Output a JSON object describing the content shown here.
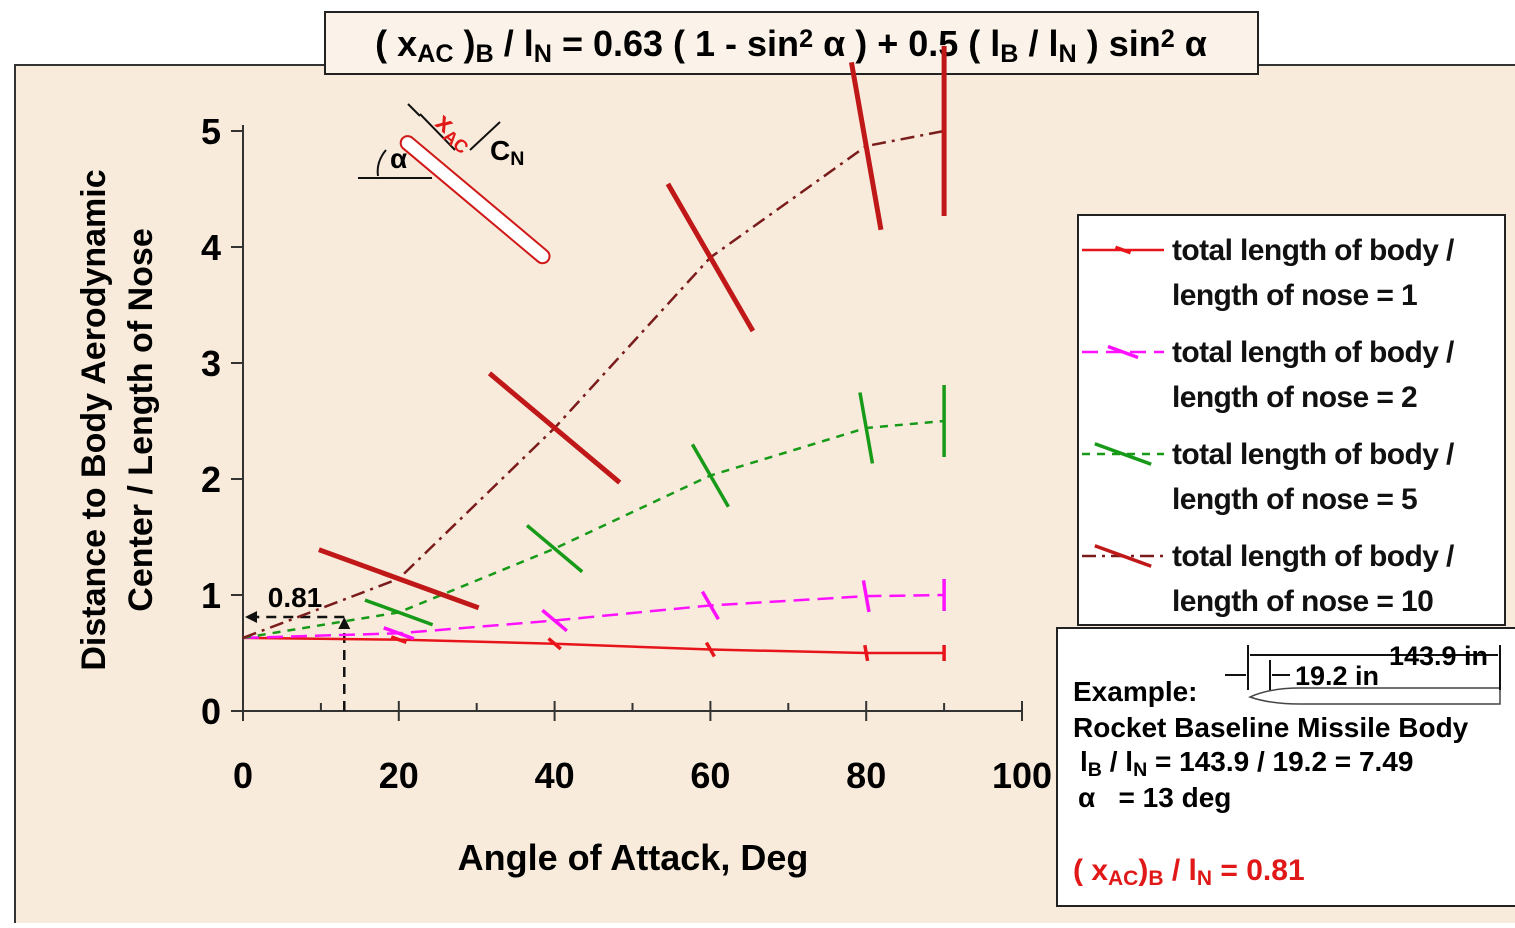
{
  "chart_data": {
    "type": "line",
    "title": [
      {
        "text": "( x"
      },
      {
        "sub": "AC"
      },
      {
        "text": " )"
      },
      {
        "sub": "B"
      },
      {
        "text": " / l"
      },
      {
        "sub": "N"
      },
      {
        "text": " = 0.63 ( 1 - sin"
      },
      {
        "sup": "2"
      },
      {
        "text": " α ) + 0.5 ( l"
      },
      {
        "sub": "B"
      },
      {
        "text": " / l"
      },
      {
        "sub": "N"
      },
      {
        "text": " ) sin"
      },
      {
        "sup": "2"
      },
      {
        "text": " α"
      }
    ],
    "xlabel": "Angle of Attack, Deg",
    "ylabel": [
      "Distance to Body Aerodynamic",
      "Center / Length of Nose"
    ],
    "x": [
      0,
      20,
      40,
      60,
      80,
      90
    ],
    "series": [
      {
        "name": "total length of body / length of nose = 1",
        "color": "#e8141b",
        "dash": "solid",
        "values": [
          0.63,
          0.615,
          0.58,
          0.53,
          0.5,
          0.5
        ]
      },
      {
        "name": "total length of body / length of nose = 2",
        "color": "#ff10ff",
        "dash": "dashed",
        "values": [
          0.63,
          0.67,
          0.78,
          0.91,
          0.99,
          1.0
        ]
      },
      {
        "name": "total length of body / length of nose = 5",
        "color": "#179a17",
        "dash": "dotted",
        "values": [
          0.63,
          0.85,
          1.4,
          2.03,
          2.44,
          2.5
        ]
      },
      {
        "name": "total length of body / length of nose = 10",
        "color": "#7a1c1c",
        "marker_color": "#c01818",
        "dash": "dashdot",
        "values": [
          0.63,
          1.14,
          2.44,
          3.91,
          4.87,
          5.0
        ]
      }
    ],
    "xlim": [
      0,
      100
    ],
    "xticks": [
      0,
      20,
      40,
      60,
      80,
      100
    ],
    "xminor": [
      10,
      30,
      50,
      70,
      90
    ],
    "ylim": [
      0,
      5
    ],
    "yticks": [
      0,
      1,
      2,
      3,
      4,
      5
    ],
    "grid": false,
    "legend": "right",
    "callout": {
      "x": 13,
      "y": 0.81
    },
    "sketch": {
      "alpha": "α",
      "xac": [
        {
          "text": "x"
        },
        {
          "sub": "AC"
        }
      ],
      "cn": [
        {
          "text": "C"
        },
        {
          "sub": "N"
        }
      ]
    },
    "example": {
      "heading": "Example:",
      "body": "Rocket Baseline Missile Body",
      "ratio": [
        {
          "text": "l"
        },
        {
          "sub": "B"
        },
        {
          "text": " / l"
        },
        {
          "sub": "N"
        },
        {
          "text": " = 143.9 / 19.2 = 7.49"
        }
      ],
      "alpha": "α   = 13 deg",
      "result": [
        {
          "text": "( x"
        },
        {
          "sub": "AC"
        },
        {
          "text": ")"
        },
        {
          "sub": "B"
        },
        {
          "text": " / l"
        },
        {
          "sub": "N"
        },
        {
          "text": " = 0.81"
        }
      ],
      "total_length": "143.9 in",
      "nose_length": "19.2 in"
    }
  }
}
